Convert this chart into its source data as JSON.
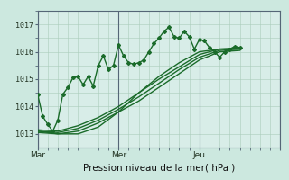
{
  "xlabel": "Pression niveau de la mer( hPa )",
  "background_color": "#cce8df",
  "plot_bg_color": "#d8ede8",
  "grid_color": "#aaccbb",
  "line_color": "#1a6b2a",
  "ylim": [
    1012.55,
    1017.25
  ],
  "xlim": [
    0,
    48
  ],
  "ytick_positions": [
    1013,
    1014,
    1015,
    1016,
    1017
  ],
  "ytick_labels": [
    "1013",
    "1014",
    "1015",
    "1016",
    "1017"
  ],
  "xtick_positions": [
    0,
    16,
    32,
    48
  ],
  "xtick_labels": [
    "Mar",
    "Mer",
    "Jeu",
    ""
  ],
  "vlines": [
    0,
    16,
    32,
    48
  ],
  "series": [
    [
      0,
      1014.45,
      1,
      1013.65,
      2,
      1013.35,
      3,
      1013.1,
      4,
      1013.5,
      5,
      1014.45,
      6,
      1014.7,
      7,
      1015.05,
      8,
      1015.1,
      9,
      1014.8,
      10,
      1015.1,
      11,
      1014.75,
      12,
      1015.5,
      13,
      1015.85,
      14,
      1015.35,
      15,
      1015.5,
      16,
      1016.25,
      17,
      1015.85,
      18,
      1015.6,
      19,
      1015.55,
      20,
      1015.6,
      21,
      1015.7,
      22,
      1016.0,
      23,
      1016.3,
      24,
      1016.5,
      25,
      1016.75,
      26,
      1016.9,
      27,
      1016.55,
      28,
      1016.5,
      29,
      1016.75,
      30,
      1016.55,
      31,
      1016.1,
      32,
      1016.45,
      33,
      1016.4,
      34,
      1016.15,
      35,
      1016.0,
      36,
      1015.8,
      37,
      1016.0,
      38,
      1016.1,
      39,
      1016.2,
      40,
      1016.15
    ],
    [
      0,
      1013.1,
      4,
      1013.0,
      8,
      1013.0,
      12,
      1013.25,
      16,
      1013.8,
      20,
      1014.5,
      24,
      1015.1,
      28,
      1015.6,
      32,
      1016.0,
      36,
      1016.1,
      40,
      1016.1
    ],
    [
      0,
      1013.05,
      4,
      1013.0,
      8,
      1013.1,
      12,
      1013.4,
      16,
      1013.8,
      20,
      1014.2,
      24,
      1014.7,
      28,
      1015.2,
      32,
      1015.7,
      36,
      1016.0,
      40,
      1016.05
    ],
    [
      0,
      1013.1,
      4,
      1013.05,
      8,
      1013.2,
      12,
      1013.5,
      16,
      1013.9,
      20,
      1014.35,
      24,
      1014.85,
      28,
      1015.35,
      32,
      1015.8,
      36,
      1016.05,
      40,
      1016.1
    ],
    [
      0,
      1013.15,
      4,
      1013.1,
      8,
      1013.3,
      12,
      1013.6,
      16,
      1014.0,
      20,
      1014.5,
      24,
      1015.0,
      28,
      1015.45,
      32,
      1015.9,
      36,
      1016.1,
      40,
      1016.15
    ]
  ],
  "series_styles": [
    {
      "lw": 1.0,
      "marker": "D",
      "ms": 2.0,
      "ls": "-"
    },
    {
      "lw": 1.0,
      "marker": null,
      "ms": 0,
      "ls": "-"
    },
    {
      "lw": 1.0,
      "marker": null,
      "ms": 0,
      "ls": "-"
    },
    {
      "lw": 1.0,
      "marker": null,
      "ms": 0,
      "ls": "-"
    },
    {
      "lw": 1.0,
      "marker": null,
      "ms": 0,
      "ls": "-"
    }
  ]
}
